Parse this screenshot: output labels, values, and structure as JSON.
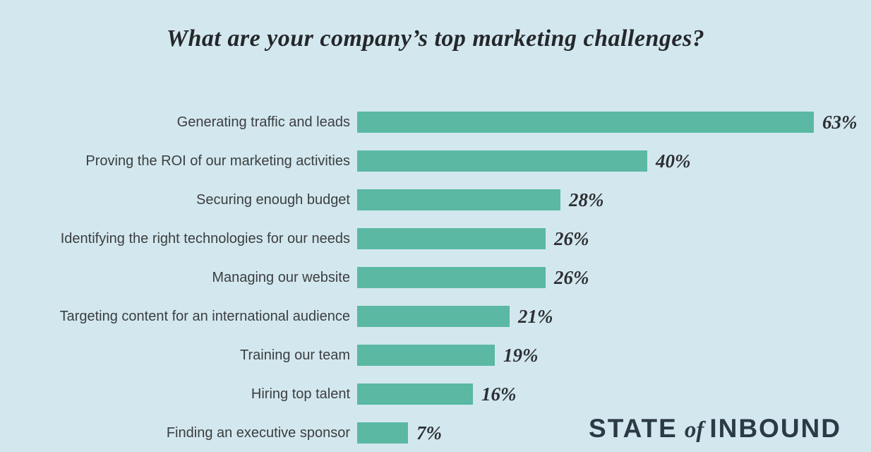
{
  "title": "What are your company’s top marketing challenges?",
  "logo": {
    "part1": "STATE",
    "part2": "of",
    "part3": "INBOUND"
  },
  "colors": {
    "background": "#d3e8ee",
    "bar": "#5ab8a3",
    "title_text": "#24282b",
    "label_text": "#3b3e40",
    "value_text": "#2c2f33",
    "logo_text": "#2c3a47"
  },
  "chart_data": {
    "type": "bar",
    "orientation": "horizontal",
    "title": "What are your company’s top marketing challenges?",
    "categories": [
      "Generating traffic and leads",
      "Proving the ROI of our marketing activities",
      "Securing enough budget",
      "Identifying the right technologies for our needs",
      "Managing our website",
      "Targeting content for an international audience",
      "Training our team",
      "Hiring top talent",
      "Finding an executive sponsor"
    ],
    "values": [
      63,
      40,
      28,
      26,
      26,
      21,
      19,
      16,
      7
    ],
    "value_labels": [
      "63%",
      "40%",
      "28%",
      "26%",
      "26%",
      "21%",
      "19%",
      "16%",
      "7%"
    ],
    "unit": "percent",
    "xlim": [
      0,
      63
    ],
    "grid": false,
    "legend": false,
    "bar_label_position": "right-of-bar",
    "category_label_position": "left-of-bar"
  }
}
